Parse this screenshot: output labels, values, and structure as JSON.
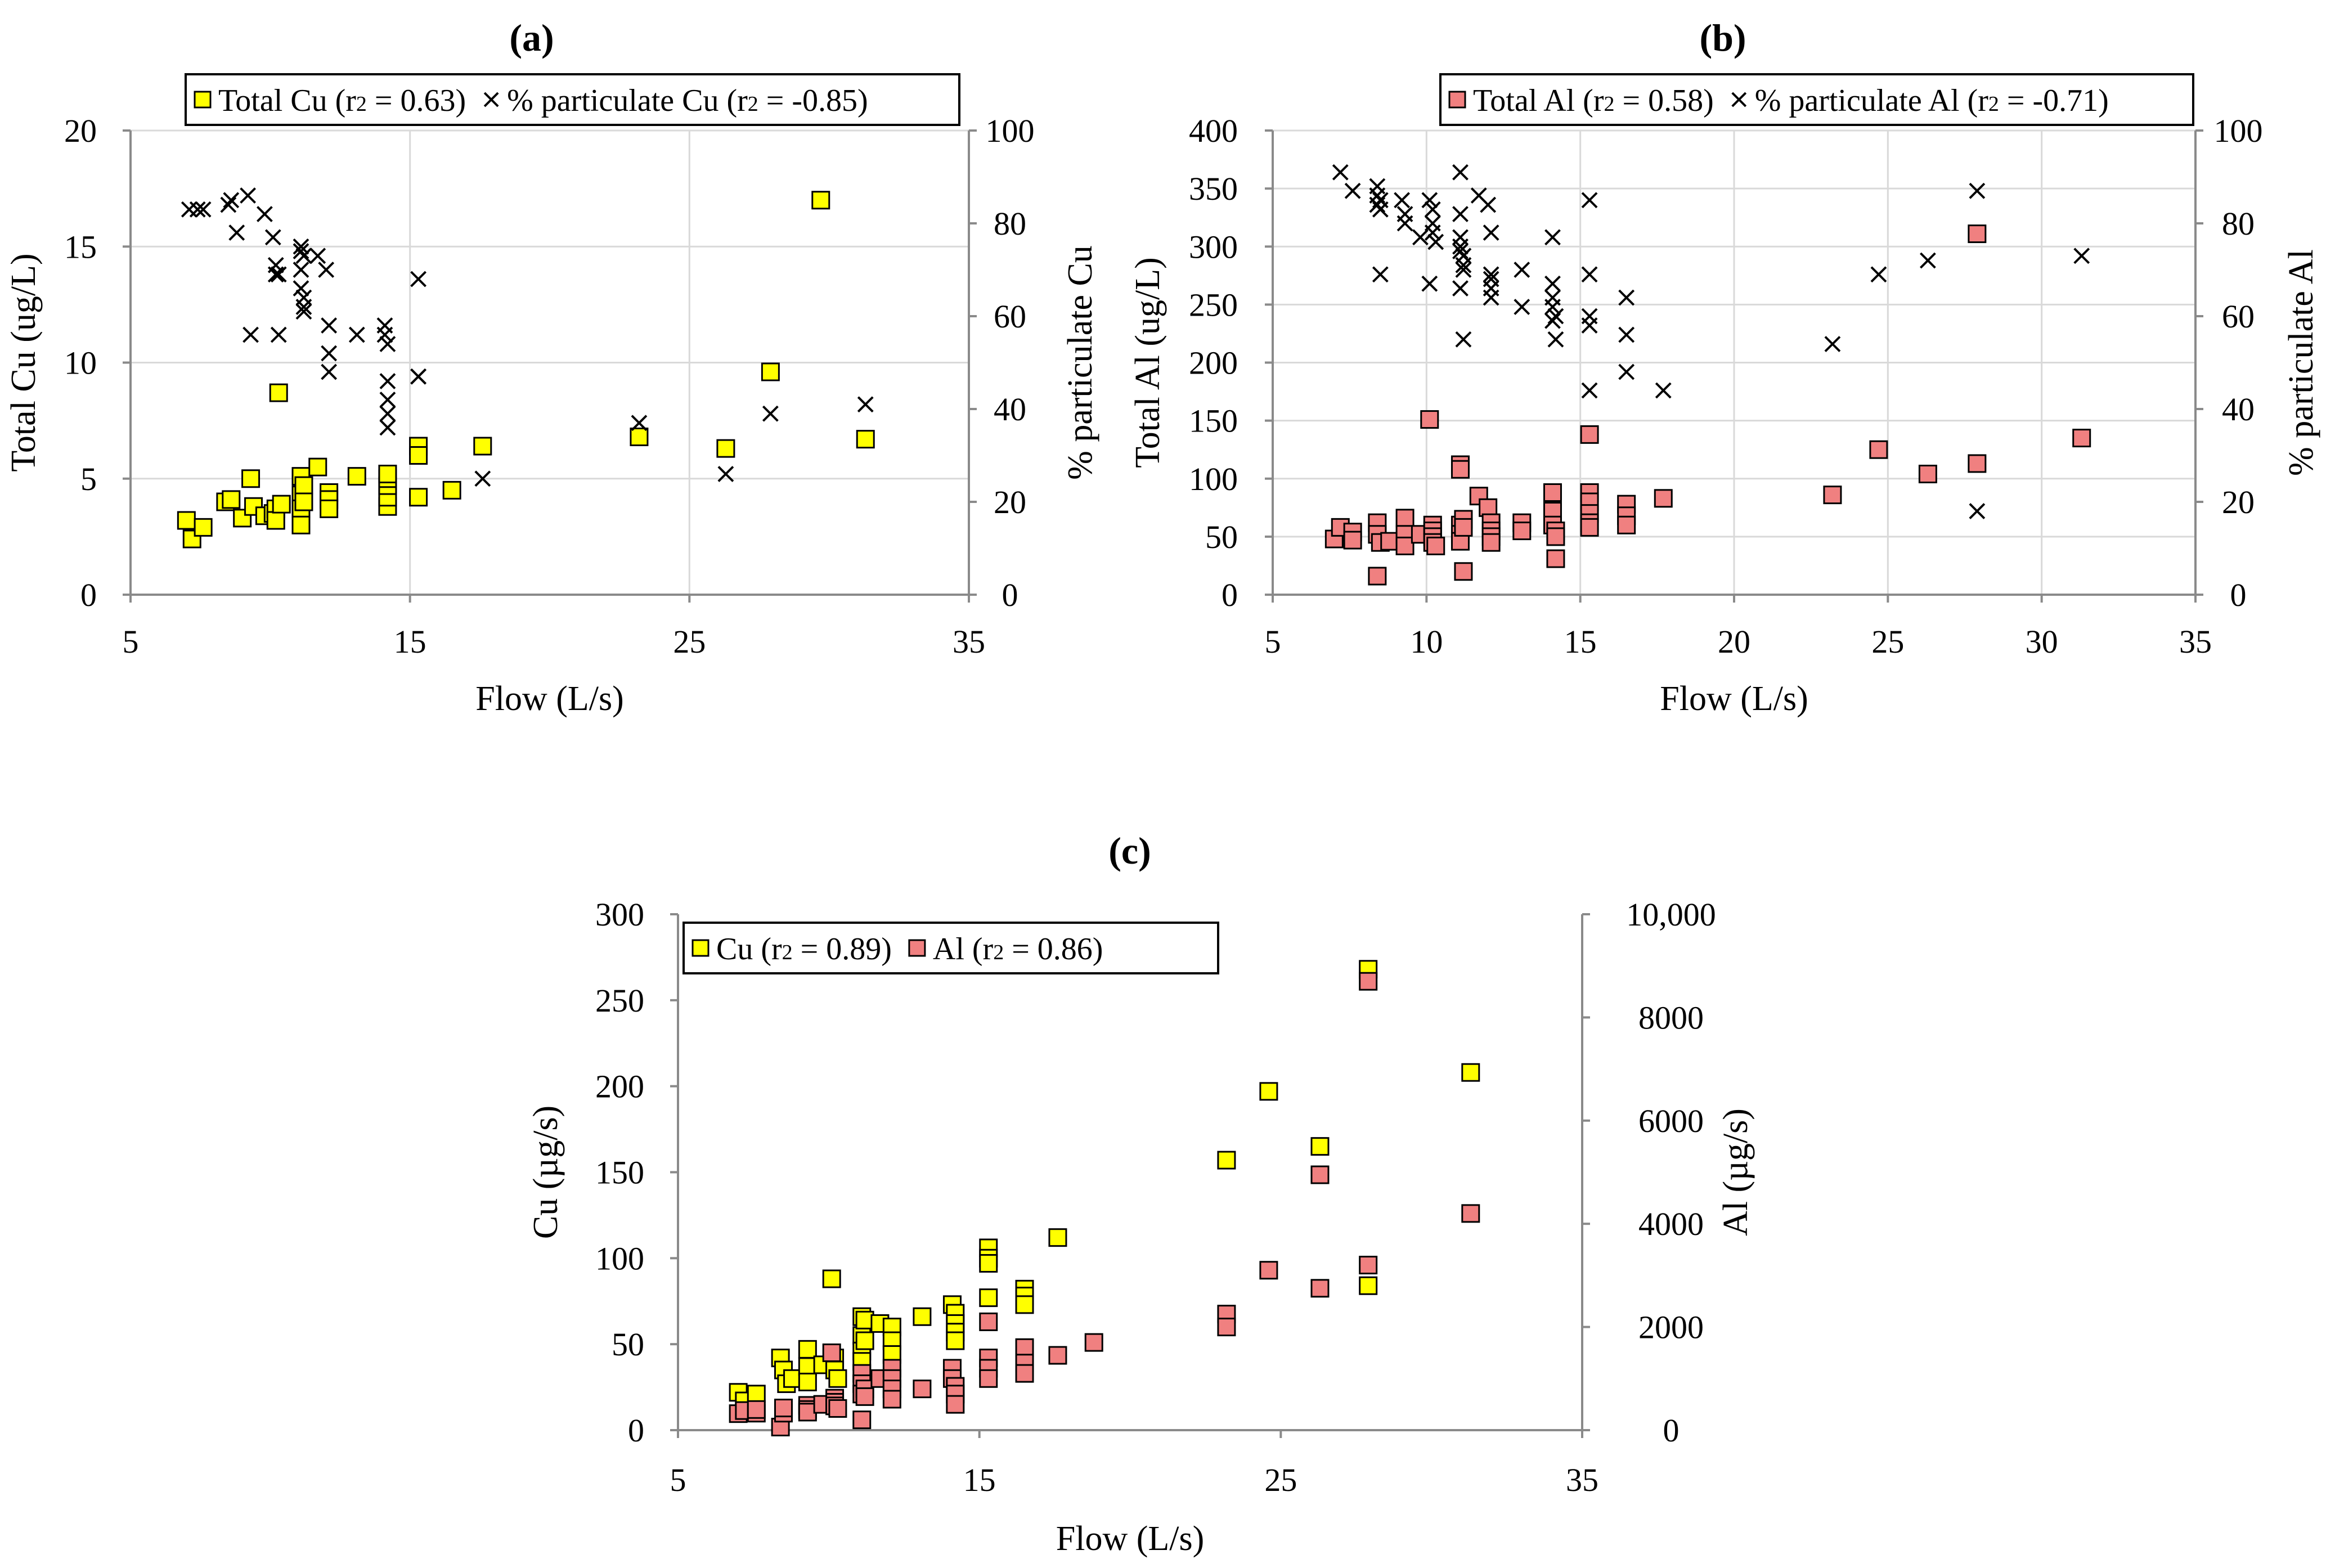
{
  "chart_data": [
    {
      "type": "scatter",
      "title": "(a)",
      "xlabel": "Flow (L/s)",
      "ylabel": "Total Cu (ug/L)",
      "y2label": "% particulate Cu",
      "xlim": [
        5,
        35
      ],
      "ylim": [
        0,
        20
      ],
      "y2lim": [
        0,
        100
      ],
      "xticks": [
        "5",
        "15",
        "25",
        "35"
      ],
      "yticks": [
        "0",
        "5",
        "10",
        "15",
        "20"
      ],
      "y2ticks": [
        "0",
        "20",
        "40",
        "60",
        "80",
        "100"
      ],
      "grid": true,
      "legend_position": "top",
      "legend_parts": [
        [
          "Total Cu (r",
          "2",
          " = 0.63)"
        ],
        [
          "% particulate  Cu (r",
          "2",
          " = -0.85)"
        ]
      ],
      "series": [
        {
          "name": "Total Cu (r2 = 0.63)",
          "axis": "left",
          "marker": "square",
          "color": "#ffff00",
          "x": [
            7.0,
            7.2,
            7.6,
            8.4,
            8.6,
            9.0,
            9.3,
            9.4,
            9.8,
            10.1,
            10.2,
            10.2,
            10.3,
            10.4,
            11.1,
            11.1,
            11.1,
            11.1,
            11.2,
            11.2,
            11.7,
            12.1,
            12.1,
            12.1,
            13.1,
            14.2,
            14.2,
            14.2,
            14.2,
            14.2,
            15.3,
            15.3,
            15.3,
            16.5,
            17.6,
            23.2,
            26.3,
            27.9,
            29.7,
            31.3
          ],
          "y": [
            3.2,
            2.4,
            2.9,
            4.0,
            4.1,
            3.3,
            5.0,
            3.8,
            3.4,
            3.5,
            3.7,
            3.2,
            8.7,
            3.9,
            5.1,
            4.3,
            3.7,
            3.0,
            4.7,
            4.0,
            5.5,
            4.4,
            4.1,
            3.7,
            5.1,
            3.8,
            4.2,
            4.7,
            5.0,
            5.2,
            6.4,
            6.0,
            4.2,
            4.5,
            6.4,
            6.8,
            6.3,
            9.6,
            17.0,
            6.7
          ]
        },
        {
          "name": "% particulate  Cu (r2 = -0.85)",
          "axis": "right",
          "marker": "x",
          "color": "#000000",
          "x": [
            7.1,
            7.4,
            7.6,
            8.5,
            8.6,
            8.8,
            9.2,
            9.3,
            9.8,
            10.1,
            10.2,
            10.2,
            10.3,
            10.3,
            11.1,
            11.1,
            11.1,
            11.1,
            11.2,
            11.2,
            11.2,
            11.2,
            11.7,
            12.0,
            12.1,
            12.1,
            12.1,
            13.1,
            14.1,
            14.1,
            14.2,
            14.2,
            14.2,
            14.2,
            14.2,
            15.3,
            15.3,
            15.3,
            17.6,
            23.2,
            26.3,
            27.9,
            31.3
          ],
          "y": [
            83,
            83,
            83,
            84,
            85,
            78,
            86,
            56,
            82,
            77,
            71,
            69,
            69,
            56,
            75,
            74,
            70,
            66,
            64,
            62,
            61,
            73,
            73,
            70,
            58,
            52,
            48,
            56,
            58,
            56,
            54,
            46,
            42,
            39,
            36,
            68,
            47,
            47,
            25,
            37,
            26,
            39,
            41
          ]
        }
      ]
    },
    {
      "type": "scatter",
      "title": "(b)",
      "xlabel": "Flow (L/s)",
      "ylabel": "Total Al (ug/L)",
      "y2label": "% particulate Al",
      "xlim": [
        5,
        35
      ],
      "ylim": [
        0,
        400
      ],
      "y2lim": [
        0,
        100
      ],
      "xticks": [
        "5",
        "10",
        "15",
        "20",
        "25",
        "30",
        "35"
      ],
      "yticks": [
        "0",
        "50",
        "100",
        "150",
        "200",
        "250",
        "300",
        "350",
        "400"
      ],
      "y2ticks": [
        "0",
        "20",
        "40",
        "60",
        "80",
        "100"
      ],
      "grid": true,
      "legend_position": "top",
      "legend_parts": [
        [
          "Total Al (r",
          "2",
          " = 0.58)"
        ],
        [
          "% particulate  Al (r",
          "2",
          " = -0.71)"
        ]
      ],
      "series": [
        {
          "name": "Total Al (r2 = 0.58)",
          "axis": "left",
          "marker": "square",
          "color": "#f08080",
          "x": [
            7.0,
            7.2,
            7.6,
            7.6,
            8.4,
            8.4,
            8.4,
            8.5,
            8.8,
            9.3,
            9.3,
            9.3,
            9.8,
            10.1,
            10.2,
            10.2,
            10.2,
            10.2,
            10.3,
            11.1,
            11.1,
            11.1,
            11.1,
            11.1,
            11.2,
            11.2,
            11.2,
            11.7,
            12.0,
            12.1,
            12.1,
            12.1,
            12.1,
            13.1,
            13.1,
            14.1,
            14.1,
            14.1,
            14.2,
            14.2,
            14.2,
            15.3,
            15.3,
            15.3,
            15.3,
            15.3,
            15.3,
            16.5,
            16.5,
            16.5,
            17.7,
            23.2,
            24.7,
            26.3,
            27.9,
            27.9,
            31.3
          ],
          "y": [
            48,
            58,
            54,
            47,
            16,
            62,
            52,
            45,
            46,
            66,
            52,
            42,
            52,
            151,
            60,
            55,
            50,
            45,
            42,
            112,
            108,
            60,
            52,
            46,
            65,
            58,
            20,
            85,
            75,
            62,
            55,
            50,
            45,
            62,
            55,
            88,
            72,
            60,
            55,
            50,
            31,
            138,
            88,
            80,
            70,
            62,
            58,
            78,
            68,
            60,
            83,
            86,
            125,
            104,
            311,
            113,
            135
          ]
        },
        {
          "name": "% particulate  Al (r2 = -0.71)",
          "axis": "right",
          "marker": "x",
          "color": "#000000",
          "x": [
            7.2,
            7.6,
            8.4,
            8.4,
            8.4,
            8.5,
            8.5,
            8.5,
            9.2,
            9.3,
            9.3,
            9.8,
            10.1,
            10.1,
            10.2,
            10.2,
            10.2,
            10.3,
            11.1,
            11.1,
            11.1,
            11.1,
            11.1,
            11.1,
            11.2,
            11.2,
            11.2,
            11.2,
            11.7,
            12.0,
            12.1,
            12.1,
            12.1,
            12.1,
            12.1,
            13.1,
            13.1,
            14.1,
            14.1,
            14.1,
            14.1,
            14.1,
            14.2,
            14.2,
            15.3,
            15.3,
            15.3,
            15.3,
            15.3,
            16.5,
            16.5,
            16.5,
            17.7,
            23.2,
            24.7,
            26.3,
            27.9,
            27.9,
            31.3
          ],
          "y": [
            91,
            87,
            88,
            86,
            84,
            83,
            85,
            69,
            85,
            82,
            80,
            77,
            85,
            67,
            83,
            80,
            78,
            76,
            91,
            82,
            77,
            75,
            74,
            66,
            73,
            71,
            70,
            55,
            86,
            84,
            78,
            69,
            68,
            66,
            64,
            70,
            62,
            77,
            67,
            64,
            62,
            59,
            60,
            55,
            85,
            69,
            60,
            58,
            44,
            64,
            56,
            48,
            44,
            54,
            69,
            72,
            87,
            18,
            73
          ]
        }
      ]
    },
    {
      "type": "scatter",
      "title": "(c)",
      "xlabel": "Flow (L/s)",
      "ylabel": "Cu (µg/s)",
      "y2label": "Al (µg/s)",
      "xlim": [
        5,
        35
      ],
      "ylim": [
        0,
        300
      ],
      "y2lim": [
        0,
        10000
      ],
      "xticks": [
        "5",
        "15",
        "25",
        "35"
      ],
      "yticks": [
        "0",
        "50",
        "100",
        "150",
        "200",
        "250",
        "300"
      ],
      "y2ticks": [
        "0",
        "2000",
        "4000",
        "6000",
        "8000",
        "10,000"
      ],
      "grid": false,
      "legend_position": "top-left",
      "legend_parts": [
        [
          "Cu (r",
          "2",
          " = 0.89)"
        ],
        [
          "Al (r",
          "2",
          " = 0.86)"
        ]
      ],
      "series": [
        {
          "name": "Cu (r2 = 0.89)",
          "axis": "left",
          "marker": "square",
          "color": "#ffff00",
          "x": [
            7.0,
            7.2,
            7.6,
            8.4,
            8.5,
            8.6,
            8.8,
            9.3,
            9.3,
            9.3,
            9.8,
            10.1,
            10.2,
            10.2,
            10.3,
            11.1,
            11.1,
            11.1,
            11.1,
            11.2,
            11.2,
            11.7,
            12.1,
            12.1,
            12.1,
            13.1,
            14.1,
            14.2,
            14.2,
            14.2,
            14.2,
            15.3,
            15.3,
            15.3,
            15.3,
            16.5,
            16.5,
            16.5,
            17.6,
            23.2,
            24.6,
            26.3,
            27.9,
            27.9,
            31.3
          ],
          "y": [
            22,
            17,
            21,
            42,
            35,
            27,
            30,
            47,
            37,
            28,
            38,
            88,
            42,
            35,
            30,
            66,
            55,
            46,
            40,
            64,
            52,
            62,
            60,
            52,
            44,
            66,
            73,
            68,
            62,
            57,
            52,
            106,
            100,
            97,
            77,
            82,
            78,
            73,
            112,
            157,
            197,
            165,
            268,
            84,
            208
          ]
        },
        {
          "name": "Al (r2 = 0.86)",
          "axis": "right",
          "marker": "square",
          "color": "#f08080",
          "x": [
            7.0,
            7.2,
            7.6,
            7.6,
            8.4,
            8.5,
            8.5,
            9.3,
            9.3,
            9.3,
            9.8,
            10.1,
            10.2,
            10.2,
            10.2,
            10.3,
            11.1,
            11.1,
            11.1,
            11.1,
            11.2,
            11.2,
            11.7,
            12.1,
            12.1,
            12.1,
            12.1,
            13.1,
            14.1,
            14.1,
            14.2,
            14.2,
            14.2,
            15.3,
            15.3,
            15.3,
            15.3,
            16.5,
            16.5,
            16.5,
            17.6,
            18.8,
            23.2,
            23.2,
            24.6,
            26.3,
            26.3,
            27.9,
            27.9,
            31.3
          ],
          "y": [
            320,
            380,
            330,
            400,
            60,
            330,
            430,
            480,
            400,
            350,
            500,
            1500,
            620,
            540,
            470,
            420,
            1100,
            900,
            700,
            200,
            800,
            650,
            1000,
            1200,
            1000,
            800,
            600,
            800,
            1200,
            1000,
            850,
            700,
            500,
            2100,
            1400,
            1200,
            1000,
            1600,
            1300,
            1100,
            1450,
            1700,
            2250,
            2000,
            3100,
            2750,
            4950,
            8700,
            3200,
            4200
          ]
        }
      ]
    }
  ]
}
